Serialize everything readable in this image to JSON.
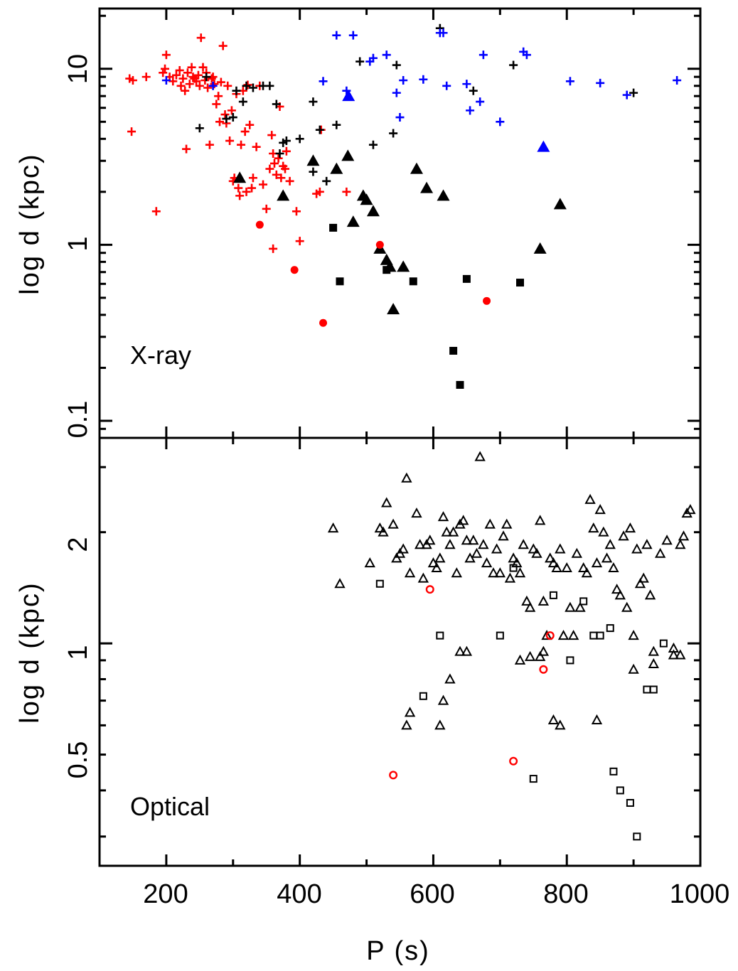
{
  "chart_data": [
    {
      "type": "scatter",
      "panel": "top",
      "panel_label": "X-ray",
      "xlabel": "",
      "ylabel": "log d (kpc)",
      "xlim": [
        100,
        1000
      ],
      "ylim": [
        0.08,
        22
      ],
      "yscale": "log",
      "x_ticks": [
        200,
        400,
        600,
        800,
        1000
      ],
      "y_tick_labels": [
        "0.1",
        "1",
        "10"
      ],
      "y_tick_values": [
        0.1,
        1,
        10
      ],
      "colors": {
        "red": "#ff0000",
        "black": "#000000",
        "blue": "#0000ff"
      },
      "series": [
        {
          "marker": "plus",
          "color": "#ff0000",
          "x": [
            145,
            148,
            150,
            170,
            185,
            195,
            198,
            200,
            205,
            210,
            215,
            220,
            222,
            225,
            228,
            230,
            232,
            235,
            238,
            240,
            242,
            245,
            248,
            250,
            252,
            255,
            258,
            260,
            262,
            265,
            268,
            270,
            272,
            275,
            278,
            280,
            282,
            285,
            288,
            290,
            292,
            295,
            298,
            300,
            302,
            305,
            308,
            310,
            312,
            315,
            318,
            320,
            322,
            325,
            328,
            330,
            335,
            340,
            345,
            350,
            355,
            358,
            360,
            362,
            365,
            368,
            370,
            372,
            375,
            378,
            380,
            385,
            395,
            400,
            425,
            430,
            432,
            470,
            360
          ],
          "y": [
            8.8,
            4.4,
            8.6,
            9.0,
            1.55,
            9.5,
            10.0,
            12.0,
            9.0,
            8.5,
            9.2,
            9.8,
            8.0,
            8.8,
            7.5,
            3.5,
            9.5,
            8.2,
            10.2,
            9.0,
            8.8,
            8.5,
            9.2,
            8.0,
            15.0,
            10.2,
            8.6,
            9.5,
            7.8,
            3.7,
            8.8,
            9.0,
            8.2,
            6.3,
            7.0,
            5.0,
            8.4,
            13.5,
            5.5,
            4.9,
            8.0,
            3.9,
            5.8,
            2.3,
            2.4,
            7.2,
            2.1,
            1.9,
            3.7,
            7.5,
            4.4,
            2.0,
            8.1,
            4.8,
            2.1,
            2.4,
            3.6,
            8.0,
            2.2,
            1.6,
            2.7,
            4.2,
            3.3,
            2.9,
            2.5,
            3.1,
            6.1,
            2.4,
            2.8,
            2.7,
            3.4,
            2.3,
            1.55,
            1.05,
            1.95,
            2.0,
            4.5,
            2.0,
            0.95
          ]
        },
        {
          "marker": "plus",
          "color": "#000000",
          "x": [
            260,
            290,
            300,
            305,
            315,
            320,
            330,
            345,
            355,
            365,
            370,
            375,
            380,
            400,
            420,
            430,
            440,
            455,
            490,
            510,
            540,
            545,
            610,
            660,
            720,
            900,
            420,
            250
          ],
          "y": [
            9.0,
            5.2,
            5.3,
            7.5,
            6.5,
            8.0,
            7.8,
            8.0,
            8.0,
            6.3,
            3.3,
            3.8,
            3.9,
            4.0,
            2.6,
            4.5,
            2.3,
            4.8,
            11.0,
            3.7,
            4.3,
            10.5,
            17.0,
            7.5,
            10.5,
            7.3,
            6.5,
            4.6
          ]
        },
        {
          "marker": "plus",
          "color": "#0000ff",
          "x": [
            200,
            270,
            435,
            455,
            470,
            480,
            505,
            510,
            530,
            545,
            550,
            555,
            585,
            610,
            615,
            620,
            650,
            655,
            670,
            675,
            700,
            735,
            740,
            805,
            850,
            890,
            965
          ],
          "y": [
            8.6,
            8.0,
            8.5,
            15.5,
            7.5,
            15.5,
            11.0,
            11.5,
            12.0,
            7.3,
            5.3,
            8.6,
            8.7,
            16.0,
            16.0,
            8.0,
            8.2,
            5.8,
            6.5,
            12.0,
            5.0,
            12.5,
            12.0,
            8.5,
            8.3,
            7.1,
            8.6
          ]
        },
        {
          "marker": "triangle-filled",
          "color": "#000000",
          "x": [
            310,
            375,
            420,
            455,
            472,
            480,
            495,
            500,
            510,
            520,
            530,
            535,
            540,
            555,
            575,
            590,
            615,
            760,
            790
          ],
          "y": [
            2.4,
            1.9,
            3.0,
            2.7,
            3.2,
            1.35,
            1.9,
            1.8,
            1.55,
            0.95,
            0.82,
            0.75,
            0.43,
            0.75,
            2.7,
            2.1,
            1.9,
            0.95,
            1.7
          ]
        },
        {
          "marker": "triangle-filled",
          "color": "#0000ff",
          "x": [
            473,
            765
          ],
          "y": [
            7.0,
            3.6
          ]
        },
        {
          "marker": "square-filled",
          "color": "#000000",
          "x": [
            450,
            460,
            530,
            570,
            630,
            640,
            650,
            730
          ],
          "y": [
            1.25,
            0.62,
            0.72,
            0.62,
            0.25,
            0.16,
            0.64,
            0.61
          ]
        },
        {
          "marker": "circle-filled",
          "color": "#ff0000",
          "x": [
            340,
            392,
            435,
            520,
            680
          ],
          "y": [
            1.3,
            0.72,
            0.36,
            1.0,
            0.48
          ]
        }
      ]
    },
    {
      "type": "scatter",
      "panel": "bottom",
      "panel_label": "Optical",
      "xlabel": "P (s)",
      "ylabel": "log d (kpc)",
      "xlim": [
        100,
        1000
      ],
      "ylim": [
        0.25,
        3.6
      ],
      "yscale": "log",
      "x_tick_labels": [
        "200",
        "400",
        "600",
        "800",
        "1000"
      ],
      "x_ticks": [
        200,
        400,
        600,
        800,
        1000
      ],
      "y_tick_labels": [
        "0.5",
        "1",
        "2"
      ],
      "y_tick_values": [
        0.5,
        1,
        2
      ],
      "series": [
        {
          "marker": "triangle-open",
          "color": "#000000",
          "x": [
            450,
            460,
            505,
            520,
            525,
            530,
            540,
            545,
            550,
            555,
            560,
            565,
            575,
            580,
            585,
            590,
            595,
            600,
            605,
            610,
            615,
            620,
            625,
            630,
            635,
            640,
            645,
            650,
            655,
            660,
            665,
            670,
            675,
            680,
            685,
            690,
            695,
            700,
            705,
            710,
            715,
            720,
            725,
            730,
            735,
            740,
            745,
            750,
            755,
            760,
            765,
            770,
            775,
            780,
            785,
            790,
            795,
            800,
            805,
            810,
            815,
            820,
            825,
            830,
            835,
            840,
            845,
            850,
            855,
            860,
            865,
            870,
            875,
            880,
            885,
            890,
            895,
            900,
            905,
            910,
            915,
            920,
            925,
            930,
            940,
            950,
            960,
            970,
            975,
            980,
            985,
            560,
            565,
            610,
            615,
            625,
            640,
            650,
            730,
            745,
            760,
            765,
            780,
            790,
            845,
            900,
            930,
            960,
            970
          ],
          "y": [
            2.05,
            1.45,
            1.65,
            2.05,
            2.0,
            2.4,
            2.1,
            1.7,
            1.75,
            1.8,
            2.8,
            1.55,
            2.25,
            1.85,
            1.5,
            1.85,
            1.9,
            1.65,
            1.6,
            1.7,
            2.2,
            2.0,
            1.85,
            2.0,
            1.55,
            2.1,
            2.15,
            1.9,
            1.7,
            1.9,
            1.75,
            3.2,
            1.85,
            1.65,
            2.1,
            1.55,
            1.8,
            1.55,
            1.95,
            2.1,
            1.5,
            1.7,
            1.65,
            1.55,
            1.85,
            1.3,
            1.25,
            1.8,
            1.75,
            2.15,
            1.3,
            1.05,
            1.7,
            1.65,
            1.6,
            1.8,
            1.05,
            1.6,
            1.25,
            1.05,
            1.75,
            1.25,
            1.6,
            1.55,
            2.45,
            2.05,
            1.65,
            2.3,
            2.0,
            1.7,
            1.85,
            1.6,
            1.4,
            1.35,
            1.95,
            1.25,
            2.05,
            1.05,
            1.8,
            1.45,
            1.5,
            1.85,
            1.35,
            0.95,
            1.75,
            1.9,
            0.93,
            1.85,
            1.95,
            2.25,
            2.3,
            0.6,
            0.65,
            0.6,
            0.7,
            0.8,
            0.95,
            0.95,
            0.9,
            0.92,
            0.92,
            0.95,
            0.62,
            0.6,
            0.62,
            0.85,
            0.88,
            0.97,
            0.93
          ]
        },
        {
          "marker": "square-open",
          "color": "#000000",
          "x": [
            520,
            585,
            610,
            700,
            720,
            750,
            780,
            805,
            825,
            840,
            850,
            865,
            870,
            880,
            895,
            905,
            920,
            930,
            945
          ],
          "y": [
            1.45,
            0.72,
            1.05,
            1.05,
            1.6,
            0.43,
            1.35,
            0.9,
            1.3,
            1.05,
            1.05,
            1.1,
            0.45,
            0.4,
            0.37,
            0.3,
            0.75,
            0.75,
            1.0
          ]
        },
        {
          "marker": "circle-open",
          "color": "#ff0000",
          "x": [
            540,
            595,
            720,
            765,
            775
          ],
          "y": [
            0.44,
            1.4,
            0.48,
            0.85,
            1.05
          ]
        }
      ]
    }
  ]
}
